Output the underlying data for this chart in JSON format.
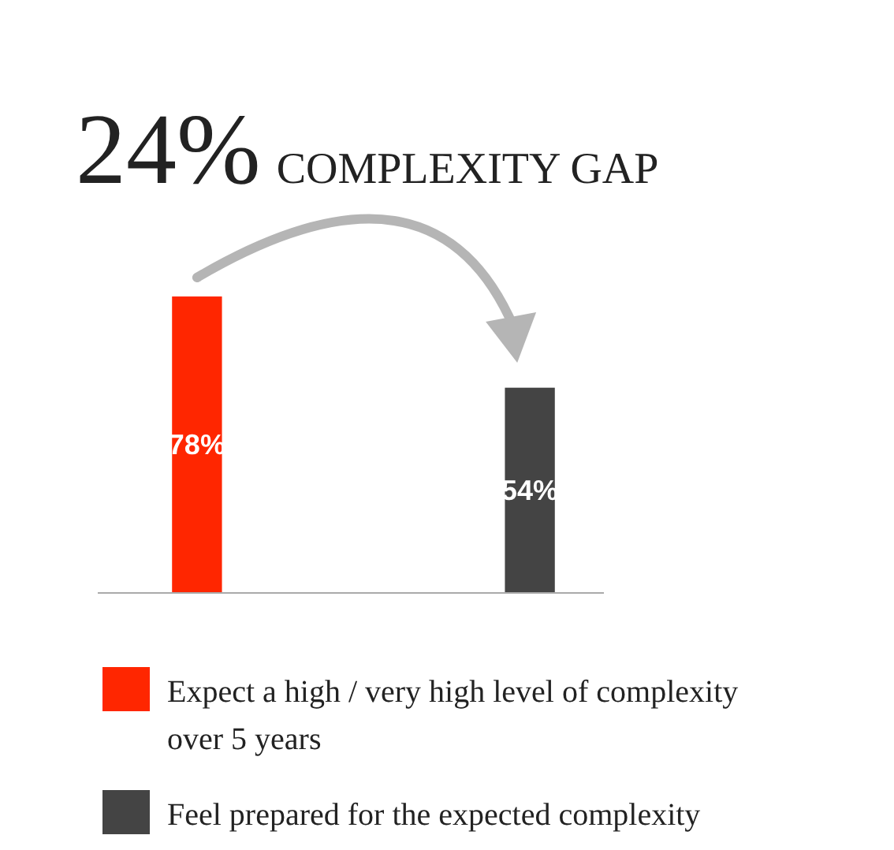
{
  "chart_data": {
    "type": "bar",
    "title": "24%",
    "subtitle": "COMPLEXITY GAP",
    "categories": [
      null,
      null
    ],
    "series": [
      {
        "name": "Expect a high / very high level of complexity over 5 years",
        "color": "#ff2600",
        "values": [
          78,
          null
        ],
        "value_labels": [
          "78%",
          null
        ]
      },
      {
        "name": "Feel prepared for the expected complexity",
        "color": "#444444",
        "values": [
          null,
          54
        ],
        "value_labels": [
          null,
          "54%"
        ]
      }
    ],
    "stacked": true,
    "legend": "bottom"
  }
}
